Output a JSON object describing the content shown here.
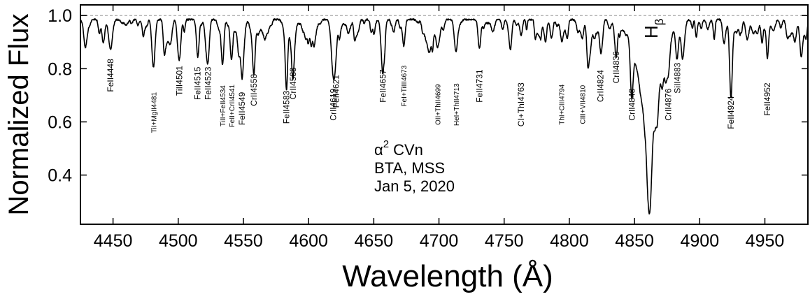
{
  "chart_data": {
    "type": "line",
    "xlabel": "Wavelength (Å)",
    "ylabel": "Normalized Flux",
    "xlim": [
      4425,
      4983
    ],
    "ylim": [
      0.215,
      1.04
    ],
    "grid": false,
    "x_ticks": [
      4450,
      4500,
      4550,
      4600,
      4650,
      4700,
      4750,
      4800,
      4850,
      4900,
      4950
    ],
    "y_ticks": [
      0.4,
      0.6,
      0.8,
      1.0
    ],
    "y_tick_labels": [
      "0.4",
      "0.6",
      "0.8",
      "1.0"
    ],
    "reference_line": {
      "y": 1.0,
      "style": "dashed",
      "color": "#999999"
    },
    "annotation": {
      "star_prefix": "α",
      "star_sup": "2",
      "star_name": "CVn",
      "telescope": "BTA, MSS",
      "date": "Jan 5, 2020"
    },
    "hbeta_label": {
      "main": "H",
      "sub": "β",
      "x": 4861
    },
    "series": [
      {
        "color": "#000000",
        "continuum": 0.985,
        "lines": [
          {
            "label": "FeII4448",
            "x": 4448,
            "depth": 0.09,
            "width": 1.5,
            "label_y": 0.775
          },
          {
            "label": "TiI+MgII4481",
            "x": 4481,
            "depth": 0.18,
            "width": 1.2,
            "label_y": 0.635
          },
          {
            "label": "TiII4501",
            "x": 4501,
            "depth": 0.1,
            "width": 1.0,
            "label_y": 0.755
          },
          {
            "label": "FeII4515",
            "x": 4515,
            "depth": 0.14,
            "width": 1.0,
            "label_y": 0.745
          },
          {
            "label": "FeII4523",
            "x": 4523,
            "depth": 0.13,
            "width": 1.0,
            "label_y": 0.745
          },
          {
            "label": "TiII+FeII4534",
            "x": 4534,
            "depth": 0.17,
            "width": 1.0,
            "label_y": 0.66
          },
          {
            "label": "FeII+CrII4541",
            "x": 4541,
            "depth": 0.13,
            "width": 1.0,
            "label_y": 0.66
          },
          {
            "label": "FeII4549",
            "x": 4549,
            "depth": 0.19,
            "width": 1.0,
            "label_y": 0.65
          },
          {
            "label": "CrII4558",
            "x": 4558,
            "depth": 0.2,
            "width": 1.0,
            "label_y": 0.72
          },
          {
            "label": "FeII4583",
            "x": 4583,
            "depth": 0.21,
            "width": 1.0,
            "label_y": 0.655
          },
          {
            "label": "CrII4588",
            "x": 4588,
            "depth": 0.12,
            "width": 1.0,
            "label_y": 0.745
          },
          {
            "label": "CrII4619",
            "x": 4619,
            "depth": 0.14,
            "width": 1.0,
            "label_y": 0.665
          },
          {
            "label": "FeII4621",
            "x": 4621,
            "depth": 0.11,
            "width": 1.0,
            "label_y": 0.715
          },
          {
            "label": "FeII4657",
            "x": 4657,
            "depth": 0.11,
            "width": 1.0,
            "label_y": 0.735
          },
          {
            "label": "FeI+TiIII4673",
            "x": 4673,
            "depth": 0.1,
            "width": 1.0,
            "label_y": 0.735
          },
          {
            "label": "OII+ThII4699",
            "x": 4699,
            "depth": 0.08,
            "width": 1.0,
            "label_y": 0.665
          },
          {
            "label": "HeI+ThII4713",
            "x": 4713,
            "depth": 0.12,
            "width": 1.2,
            "label_y": 0.665
          },
          {
            "label": "FeII4731",
            "x": 4731,
            "depth": 0.11,
            "width": 1.0,
            "label_y": 0.735
          },
          {
            "label": "CI+ThI4763",
            "x": 4763,
            "depth": 0.06,
            "width": 1.0,
            "label_y": 0.665
          },
          {
            "label": "ThI+CIII4794",
            "x": 4794,
            "depth": 0.07,
            "width": 1.0,
            "label_y": 0.665
          },
          {
            "label": "CIII+VII4810",
            "x": 4810,
            "depth": 0.07,
            "width": 1.0,
            "label_y": 0.665
          },
          {
            "label": "CrII4824",
            "x": 4824,
            "depth": 0.11,
            "width": 1.0,
            "label_y": 0.735
          },
          {
            "label": "CrII4836",
            "x": 4836,
            "depth": 0.1,
            "width": 1.0,
            "label_y": 0.805
          },
          {
            "label": "CrII4848",
            "x": 4848,
            "depth": 0.15,
            "width": 1.0,
            "label_y": 0.665
          },
          {
            "label": "CrII4876",
            "x": 4876,
            "depth": 0.11,
            "width": 1.0,
            "label_y": 0.665
          },
          {
            "label": "SiII4883",
            "x": 4883,
            "depth": 0.08,
            "width": 1.0,
            "label_y": 0.765
          },
          {
            "label": "FeII4924",
            "x": 4924,
            "depth": 0.24,
            "width": 1.0,
            "label_y": 0.635
          },
          {
            "label": "FeII4952",
            "x": 4952,
            "depth": 0.12,
            "width": 1.0,
            "label_y": 0.685
          }
        ]
      }
    ]
  }
}
